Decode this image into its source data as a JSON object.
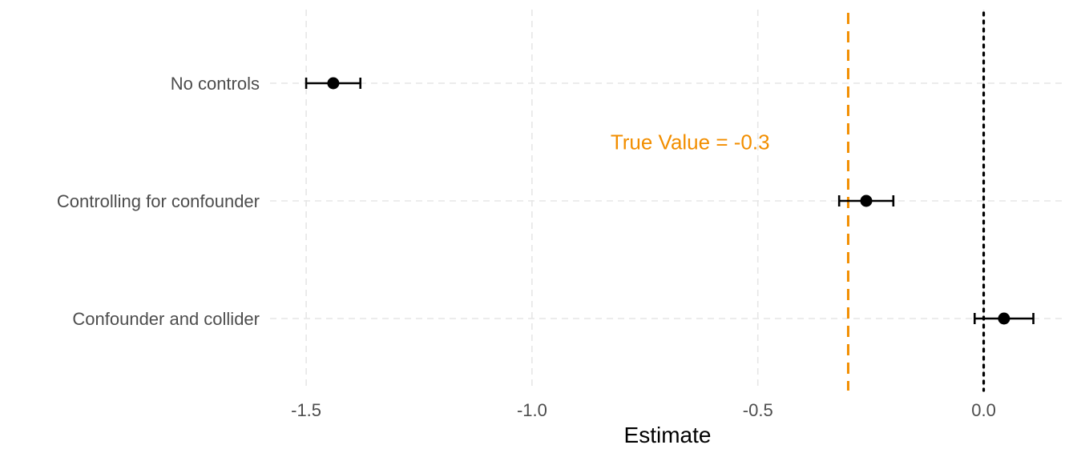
{
  "chart_data": {
    "type": "scatter",
    "subtype": "coefficient-plot-with-error-bars",
    "title": "",
    "xlabel": "Estimate",
    "ylabel": "",
    "xlim": [
      -1.58,
      0.18
    ],
    "x_ticks": [
      -1.5,
      -1.0,
      -0.5,
      0.0
    ],
    "x_tick_labels": [
      "-1.5",
      "-1.0",
      "-0.5",
      "0.0"
    ],
    "grid": true,
    "legend": "none",
    "categories": [
      "No controls",
      "Controlling for confounder",
      "Confounder and collider"
    ],
    "points": [
      {
        "label": "No controls",
        "estimate": -1.44,
        "lower": -1.5,
        "upper": -1.38
      },
      {
        "label": "Controlling for confounder",
        "estimate": -0.26,
        "lower": -0.32,
        "upper": -0.2
      },
      {
        "label": "Confounder and collider",
        "estimate": 0.045,
        "lower": -0.02,
        "upper": 0.11
      }
    ],
    "reference_lines": [
      {
        "x": -0.3,
        "style": "dashed",
        "color": "#f28e00"
      },
      {
        "x": 0.0,
        "style": "dotted",
        "color": "#000000"
      }
    ],
    "annotations": [
      {
        "text": "True Value = -0.3",
        "x": -0.65,
        "category_position": 1.5,
        "color": "#f28e00"
      }
    ],
    "colors": {
      "points": "#000000",
      "true_value": "#f28e00"
    }
  }
}
